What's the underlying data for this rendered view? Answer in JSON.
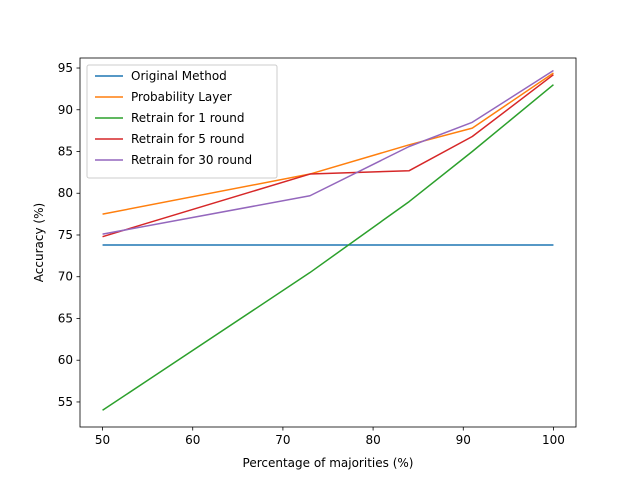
{
  "chart_data": {
    "type": "line",
    "title": "",
    "xlabel": "Percentage of majorities (%)",
    "ylabel": "Accuracy (%)",
    "xlim": [
      47.5,
      102.5
    ],
    "ylim": [
      52,
      96.2
    ],
    "xticks": [
      50,
      60,
      70,
      80,
      90,
      100
    ],
    "yticks": [
      55,
      60,
      65,
      70,
      75,
      80,
      85,
      90,
      95
    ],
    "grid": false,
    "legend_position": "top-left",
    "series": [
      {
        "name": "Original Method",
        "color": "#1f77b4",
        "x": [
          50,
          100
        ],
        "y": [
          73.8,
          73.8
        ]
      },
      {
        "name": "Probability Layer",
        "color": "#ff7f0e",
        "x": [
          50,
          73,
          84,
          91,
          100
        ],
        "y": [
          77.5,
          82.3,
          85.8,
          87.8,
          94.4
        ]
      },
      {
        "name": "Retrain for 1 round",
        "color": "#2ca02c",
        "x": [
          50,
          73,
          84,
          91,
          100
        ],
        "y": [
          54.0,
          70.5,
          79.0,
          85.0,
          93.0
        ]
      },
      {
        "name": "Retrain for 5 round",
        "color": "#d62728",
        "x": [
          50,
          73,
          84,
          91,
          100
        ],
        "y": [
          74.8,
          82.3,
          82.7,
          86.8,
          94.2
        ]
      },
      {
        "name": "Retrain for 30 round",
        "color": "#9467bd",
        "x": [
          50,
          73,
          84,
          91,
          100
        ],
        "y": [
          75.1,
          79.7,
          85.6,
          88.5,
          94.7
        ]
      }
    ]
  }
}
